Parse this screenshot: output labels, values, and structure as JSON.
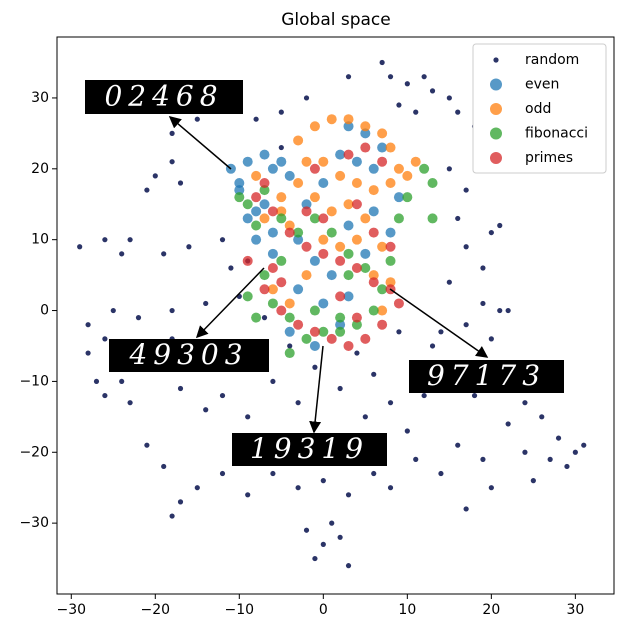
{
  "chart_data": {
    "type": "scatter",
    "title": "Global space",
    "xlim": [
      -31.7,
      34.6
    ],
    "ylim": [
      -40,
      38.6
    ],
    "xticks": [
      {
        "value": -30,
        "label": "−30"
      },
      {
        "value": -20,
        "label": "−20"
      },
      {
        "value": -10,
        "label": "−10"
      },
      0,
      10,
      20,
      30
    ],
    "yticks": [
      {
        "value": -30,
        "label": "−30"
      },
      {
        "value": -20,
        "label": "−20"
      },
      {
        "value": -10,
        "label": "−10"
      },
      0,
      10,
      20,
      30
    ],
    "legend": "upper right",
    "annotations": [
      {
        "text": "02468"
      },
      {
        "text": "49303"
      },
      {
        "text": "97173"
      },
      {
        "text": "19319"
      }
    ],
    "series": [
      {
        "name": "random",
        "color": "#2b3467",
        "x": [
          7,
          8,
          10,
          12,
          13,
          15,
          16,
          18,
          9,
          11,
          3,
          -2,
          -5,
          -8,
          -13,
          -15,
          -18,
          -18,
          -20,
          -17,
          -21,
          -5,
          -12,
          -16,
          -19,
          -23,
          -26,
          -29,
          -24,
          -9,
          -11,
          -10,
          -14,
          -18,
          -22,
          -25,
          -28,
          -26,
          -22,
          -18,
          -15,
          -20,
          -24,
          -28,
          -26,
          -17,
          -14,
          -12,
          -9,
          -6,
          -4,
          -3,
          -1,
          2,
          4,
          6,
          5,
          8,
          10,
          12,
          14,
          16,
          13,
          17,
          19,
          21,
          20,
          18,
          22,
          24,
          26,
          28,
          30,
          27,
          25,
          20,
          17,
          14,
          11,
          8,
          6,
          3,
          0,
          -3,
          -6,
          -9,
          -12,
          -15,
          -17,
          -19,
          -21,
          -18,
          -2,
          0,
          2,
          -1,
          3,
          1,
          16,
          19,
          22,
          15,
          17,
          20,
          21,
          19,
          22,
          16,
          15,
          17,
          14,
          7,
          -8,
          -5,
          -11,
          -7,
          9,
          -23,
          24,
          31,
          29,
          -27
        ],
        "values": [
          35,
          33,
          32,
          33,
          31,
          30,
          28,
          26,
          29,
          28,
          33,
          30,
          28,
          27,
          29,
          27,
          25,
          21,
          19,
          18,
          17,
          23,
          10,
          9,
          8,
          10,
          10,
          9,
          8,
          7,
          6,
          2,
          1,
          0,
          -1,
          0,
          -2,
          -4,
          -5,
          -4,
          -6,
          -8,
          -10,
          -6,
          -12,
          -11,
          -14,
          -12,
          -15,
          -10,
          -5,
          -13,
          -8,
          -11,
          -6,
          -9,
          -15,
          -13,
          -17,
          -12,
          -10,
          -8,
          -5,
          -2,
          1,
          0,
          -4,
          -12,
          -16,
          -20,
          -15,
          -18,
          -20,
          -21,
          -24,
          -25,
          -28,
          -23,
          -21,
          -25,
          -23,
          -26,
          -24,
          -25,
          -23,
          -26,
          -23,
          -25,
          -27,
          -22,
          -19,
          -29,
          -31,
          -33,
          -32,
          -35,
          -36,
          -30,
          -19,
          -21,
          -9,
          4,
          9,
          11,
          12,
          6,
          0,
          13,
          20,
          17,
          -3,
          -20,
          -20,
          -18,
          -5,
          -1,
          -3,
          -13,
          -13,
          -19,
          -22,
          -10
        ]
      },
      {
        "name": "even",
        "color": "#1f77b4",
        "x": [
          -11,
          -10,
          -9,
          -7,
          -6,
          -5,
          -8,
          -9,
          -10,
          -7,
          -4,
          -6,
          -8,
          -2,
          0,
          2,
          4,
          6,
          7,
          -3,
          -1,
          1,
          3,
          5,
          6,
          3,
          -1,
          2,
          0,
          -3,
          9,
          8,
          5,
          3,
          -6,
          -4
        ],
        "values": [
          20,
          18,
          21,
          22,
          20,
          21,
          14,
          13,
          17,
          15,
          19,
          11,
          10,
          15,
          18,
          22,
          21,
          20,
          23,
          10,
          7,
          5,
          12,
          8,
          14,
          2,
          -5,
          -2,
          1,
          3,
          16,
          11,
          25,
          26,
          8,
          -3
        ]
      },
      {
        "name": "odd",
        "color": "#ff7f0e",
        "x": [
          -3,
          -1,
          1,
          3,
          5,
          7,
          8,
          9,
          -2,
          0,
          2,
          4,
          6,
          -3,
          -1,
          1,
          3,
          5,
          -5,
          -7,
          -4,
          0,
          2,
          4,
          6,
          8,
          7,
          -2,
          -6,
          -4,
          10,
          11,
          8,
          -5,
          -8,
          7
        ],
        "values": [
          24,
          26,
          27,
          27,
          26,
          25,
          23,
          20,
          21,
          21,
          19,
          18,
          17,
          18,
          16,
          14,
          15,
          13,
          16,
          13,
          12,
          10,
          9,
          10,
          5,
          4,
          0,
          5,
          3,
          1,
          19,
          21,
          18,
          14,
          19,
          9
        ]
      },
      {
        "name": "fibonacci",
        "color": "#2ca02c",
        "x": [
          -9,
          -8,
          -7,
          -10,
          -5,
          -3,
          -1,
          1,
          3,
          5,
          7,
          6,
          4,
          2,
          0,
          -2,
          -4,
          -6,
          -8,
          -9,
          -7,
          -5,
          12,
          13,
          13,
          9,
          8,
          2,
          -1,
          3,
          10,
          -4
        ],
        "values": [
          15,
          12,
          17,
          16,
          13,
          11,
          13,
          11,
          8,
          6,
          3,
          0,
          -2,
          -3,
          -3,
          -4,
          -1,
          1,
          -1,
          2,
          5,
          7,
          20,
          18,
          13,
          13,
          7,
          -1,
          0,
          5,
          16,
          -6
        ]
      },
      {
        "name": "primes",
        "color": "#d62728",
        "x": [
          -7,
          -8,
          -6,
          -4,
          -2,
          0,
          2,
          4,
          6,
          8,
          9,
          7,
          5,
          3,
          1,
          -1,
          -3,
          -5,
          -7,
          -9,
          -6,
          -2,
          0,
          3,
          5,
          7,
          4,
          -1,
          2,
          4,
          8,
          6,
          -5
        ],
        "values": [
          18,
          16,
          14,
          11,
          9,
          8,
          7,
          6,
          4,
          3,
          1,
          -2,
          -4,
          -5,
          -4,
          -3,
          -2,
          0,
          3,
          7,
          6,
          14,
          13,
          22,
          23,
          21,
          15,
          20,
          2,
          -1,
          9,
          11,
          4
        ]
      }
    ]
  }
}
